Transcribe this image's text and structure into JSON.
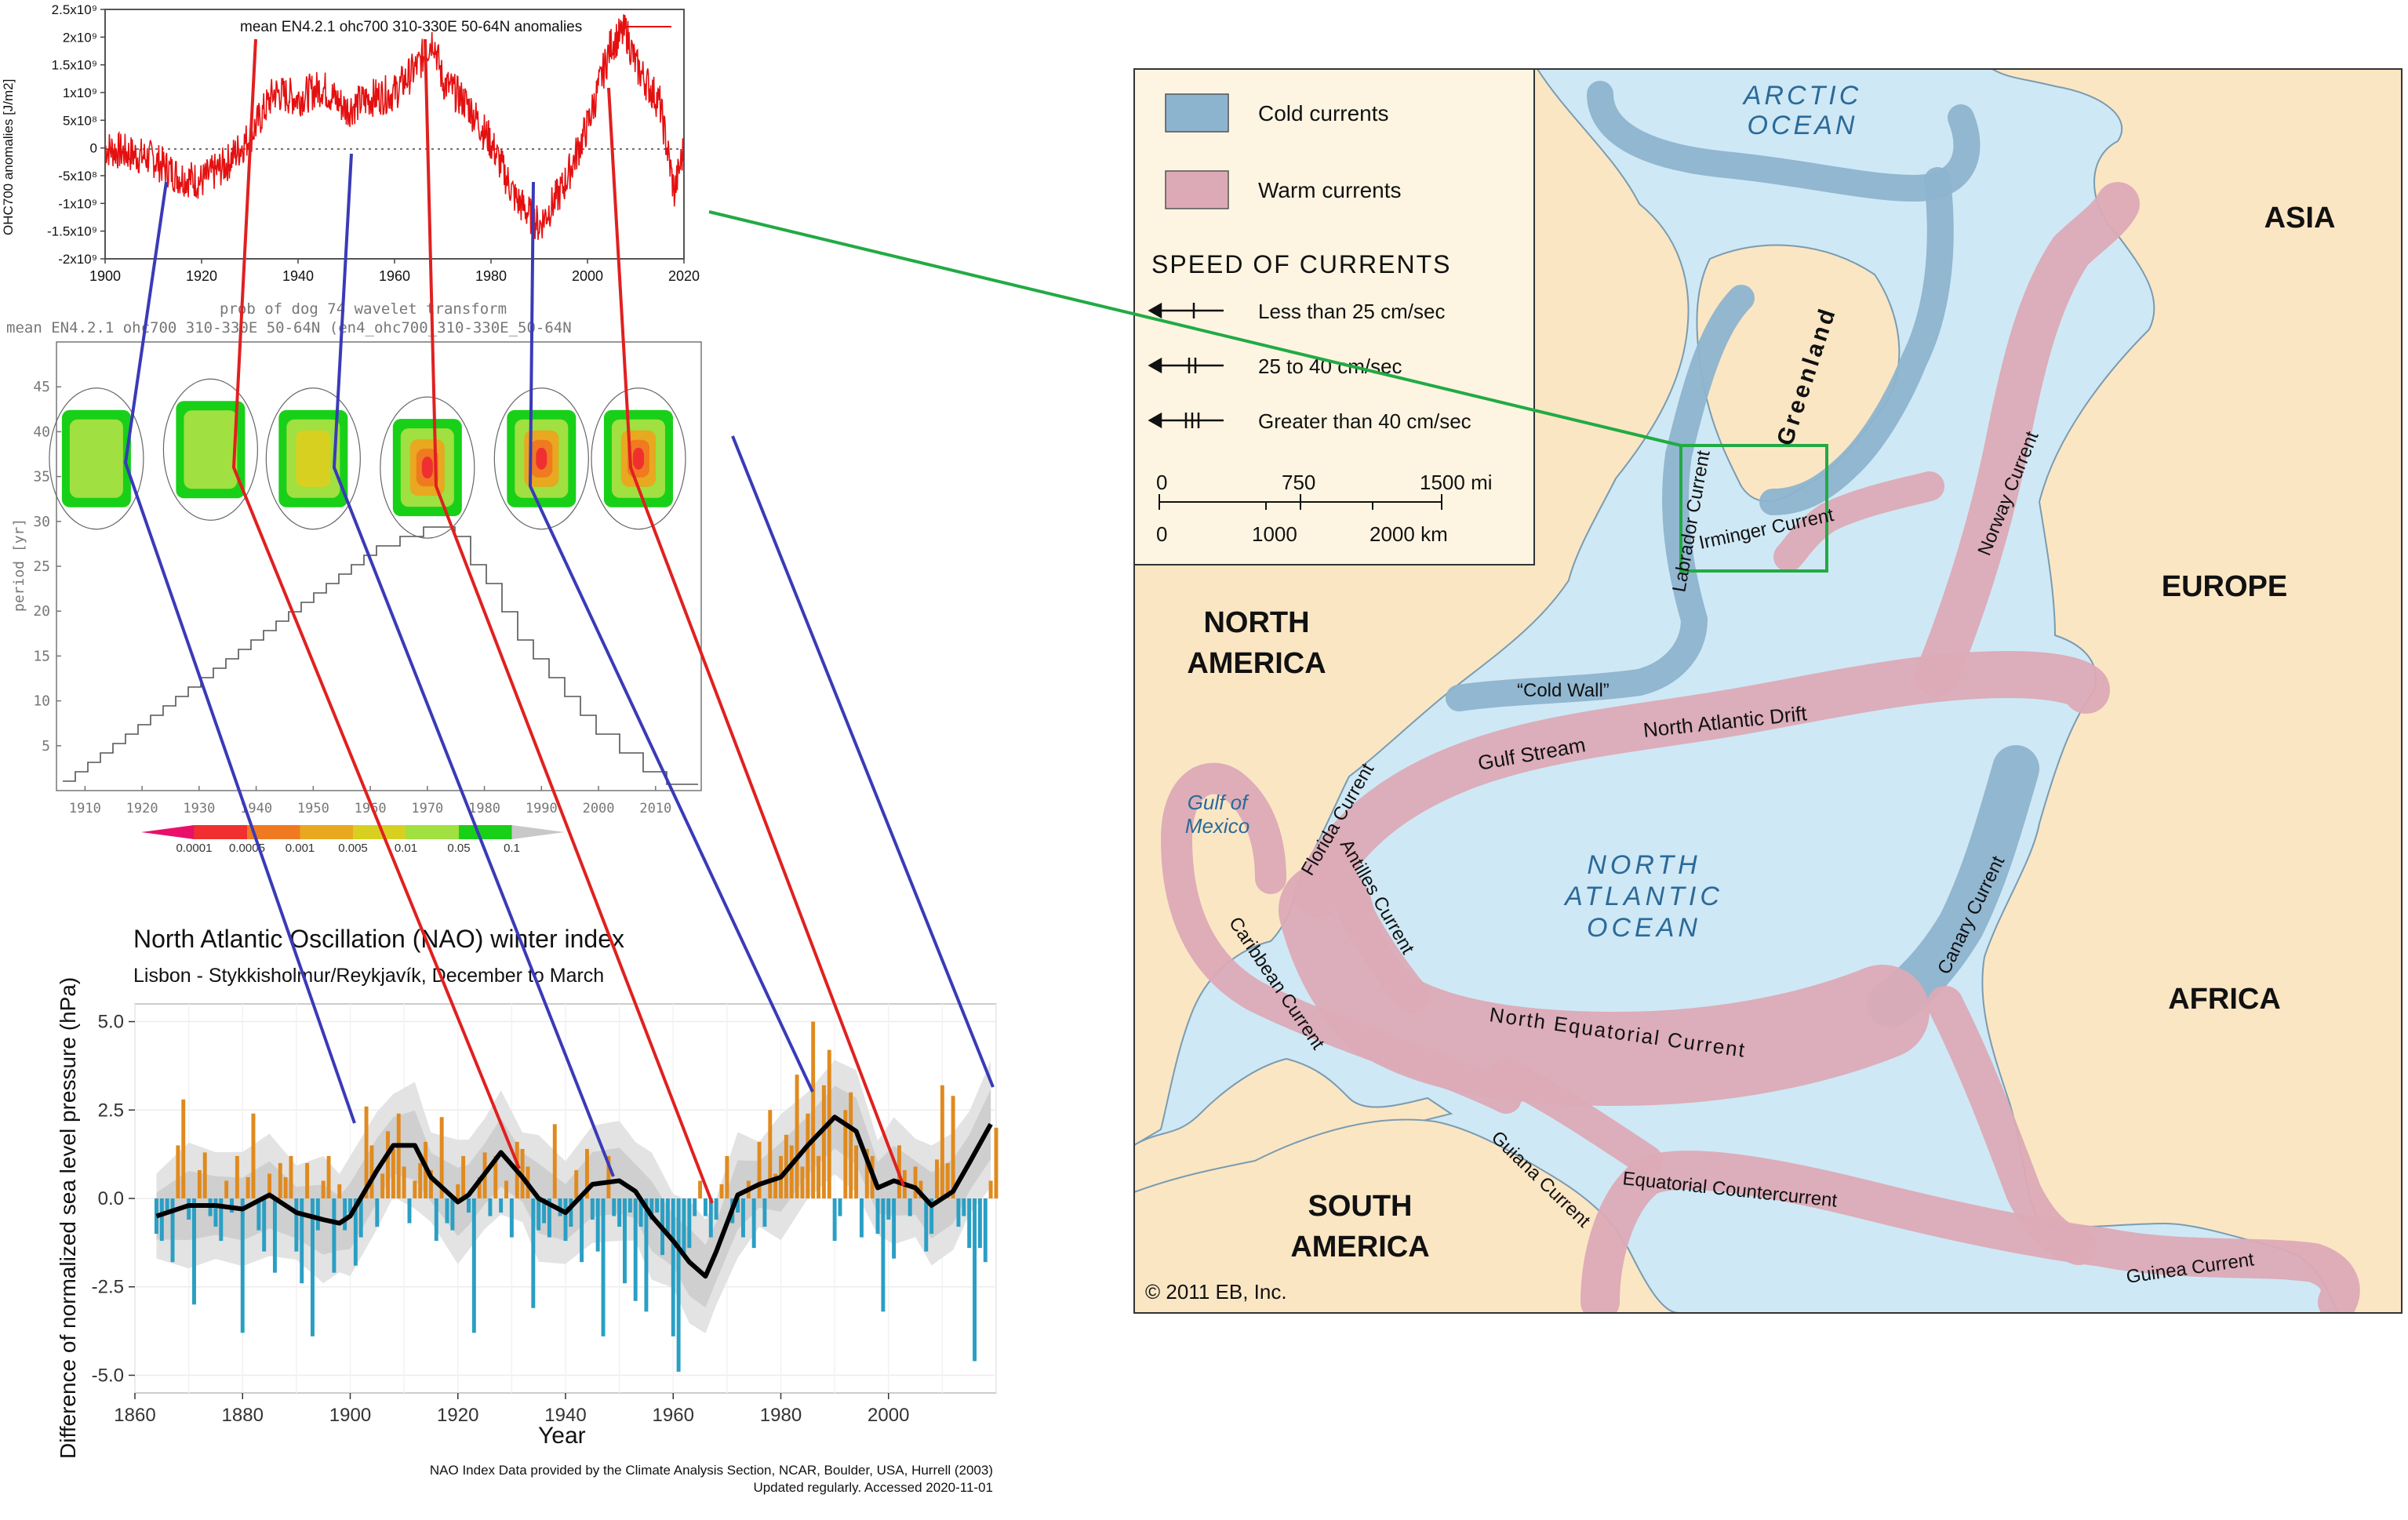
{
  "top_chart": {
    "legend": "mean EN4.2.1 ohc700 310-330E 50-64N anomalies",
    "ylabel": "OHC700 anomalies [J/m2]",
    "yticks": [
      "2.5x10⁹",
      "2x10⁹",
      "1.5x10⁹",
      "1x10⁹",
      "5x10⁸",
      "0",
      "-5x10⁸",
      "-1x10⁹",
      "-1.5x10⁹",
      "-2x10⁹"
    ],
    "xticks": [
      "1900",
      "1920",
      "1940",
      "1960",
      "1980",
      "2000",
      "2020"
    ]
  },
  "wavelet": {
    "title1": "prob of dog 74 wavelet transform",
    "title2": "mean EN4.2.1 ohc700 310-330E 50-64N (en4_ohc700_310-330E_50-64N",
    "ylabel": "period [yr]",
    "yticks": [
      "45",
      "40",
      "35",
      "30",
      "25",
      "20",
      "15",
      "10",
      "5"
    ],
    "xticks": [
      "1910",
      "1920",
      "1930",
      "1940",
      "1950",
      "1960",
      "1970",
      "1980",
      "1990",
      "2000",
      "2010"
    ],
    "colorbar_labels": [
      "0.0001",
      "0.0005",
      "0.001",
      "0.005",
      "0.01",
      "0.05",
      "0.1"
    ],
    "colorbar_colors": [
      "#e8106a",
      "#f03030",
      "#f07a20",
      "#e8a820",
      "#d8d020",
      "#a0e040",
      "#18d018",
      "#c8c8c8"
    ]
  },
  "nao": {
    "title": "North Atlantic Oscillation (NAO) winter index",
    "subtitle": "Lisbon - Stykkisholmur/Reykjavík, December to March",
    "ylabel": "Difference of normalized sea level pressure (hPa)",
    "xlabel": "Year",
    "yticks": [
      "5.0",
      "2.5",
      "0.0",
      "-2.5",
      "-5.0"
    ],
    "xticks": [
      "1860",
      "1880",
      "1900",
      "1920",
      "1940",
      "1960",
      "1980",
      "2000"
    ],
    "footnote1": "NAO Index Data provided by the Climate Analysis Section, NCAR, Boulder, USA, Hurrell (2003)",
    "footnote2": "Updated regularly. Accessed 2020-11-01",
    "pos_color": "#e08a1e",
    "neg_color": "#2a9fc4"
  },
  "chart_data": [
    {
      "type": "line",
      "title": "mean EN4.2.1 ohc700 310-330E 50-64N anomalies",
      "ylabel": "OHC700 anomalies [J/m2]",
      "xlim": [
        1900,
        2020
      ],
      "ylim": [
        -2000000000,
        2500000000
      ],
      "series": [
        {
          "name": "mean EN4.2.1 ohc700 310-330E 50-64N anomalies",
          "x": [
            1900,
            1905,
            1910,
            1915,
            1920,
            1925,
            1930,
            1935,
            1940,
            1945,
            1950,
            1955,
            1960,
            1965,
            1968,
            1970,
            1975,
            1980,
            1985,
            1990,
            1995,
            2000,
            2005,
            2008,
            2010,
            2015,
            2018,
            2020
          ],
          "y": [
            0,
            -100000000,
            -200000000,
            -500000000,
            -600000000,
            -300000000,
            200000000,
            1000000000,
            900000000,
            1100000000,
            700000000,
            900000000,
            1000000000,
            1500000000,
            2000000000,
            1200000000,
            800000000,
            100000000,
            -900000000,
            -1400000000,
            -700000000,
            400000000,
            1900000000,
            2100000000,
            1500000000,
            800000000,
            -800000000,
            0
          ]
        }
      ]
    },
    {
      "type": "heatmap",
      "title": "prob of dog 74 wavelet transform",
      "ylabel": "period [yr]",
      "xlim": [
        1905,
        2018
      ],
      "ylim": [
        0,
        50
      ],
      "blobs": [
        {
          "year": 1912,
          "period": 37,
          "level": "0.05"
        },
        {
          "year": 1932,
          "period": 38,
          "level": "0.05"
        },
        {
          "year": 1950,
          "period": 37,
          "level": "0.01"
        },
        {
          "year": 1970,
          "period": 36,
          "level": "0.0005"
        },
        {
          "year": 1990,
          "period": 37,
          "level": "0.0005"
        },
        {
          "year": 2007,
          "period": 37,
          "level": "0.0005"
        }
      ]
    },
    {
      "type": "bar",
      "title": "North Atlantic Oscillation (NAO) winter index",
      "subtitle": "Lisbon - Stykkisholmur/Reykjavík, December to March",
      "xlabel": "Year",
      "ylabel": "Difference of normalized sea level pressure (hPa)",
      "xlim": [
        1860,
        2020
      ],
      "ylim": [
        -5.5,
        5.5
      ],
      "x_start": 1864,
      "values": [
        -1.0,
        -1.2,
        -0.4,
        -1.8,
        1.5,
        2.8,
        -0.6,
        -3.0,
        0.8,
        1.3,
        -0.5,
        -0.8,
        -1.2,
        0.5,
        -0.4,
        1.2,
        -3.8,
        0.6,
        2.4,
        -0.9,
        -1.5,
        0.7,
        -2.1,
        1.0,
        0.6,
        1.2,
        -1.5,
        -2.4,
        1.0,
        -3.9,
        -0.9,
        0.5,
        1.2,
        -2.1,
        0.4,
        -0.9,
        -0.4,
        -1.9,
        -1.1,
        2.6,
        1.5,
        -0.8,
        0.7,
        1.9,
        1.4,
        2.4,
        0.9,
        -0.7,
        0.5,
        1.0,
        1.6,
        0.8,
        -1.2,
        2.3,
        -0.7,
        -0.9,
        0.4,
        1.2,
        -0.4,
        -3.8,
        0.6,
        1.3,
        -0.5,
        1.2,
        -0.4,
        0.5,
        -1.1,
        1.6,
        1.4,
        0.9,
        -3.1,
        -0.9,
        -0.7,
        -1.1,
        2.1,
        -0.5,
        -1.2,
        -0.8,
        0.8,
        -1.8,
        1.4,
        -0.6,
        -1.5,
        -3.9,
        1.2,
        -0.5,
        -0.8,
        -2.4,
        -0.4,
        -2.9,
        -0.8,
        -3.2,
        -0.6,
        -0.4,
        -1.6,
        -1.0,
        -3.9,
        -4.9,
        -1.6,
        -1.4,
        -0.5,
        0.5,
        -0.5,
        -1.1,
        -0.6,
        0.4,
        1.2,
        -0.7,
        -0.4,
        -1.1,
        0.5,
        -1.4,
        1.6,
        -0.8,
        2.5,
        0.7,
        1.2,
        1.8,
        1.5,
        3.5,
        0.9,
        2.4,
        5.0,
        1.2,
        3.2,
        4.2,
        -1.2,
        -0.5,
        2.5,
        3.0,
        1.5,
        -1.1,
        1.4,
        1.2,
        -1.0,
        -3.2,
        -0.6,
        -1.7,
        1.5,
        0.8,
        -0.5,
        0.9,
        0.5,
        -1.5,
        -1.0,
        1.1,
        3.2,
        1.0,
        2.9,
        -0.8,
        -0.5,
        -1.4,
        -4.6,
        -1.4,
        -1.8,
        0.5,
        2.0,
        3.4,
        -1.2,
        3.6,
        2.4,
        1.6,
        -0.3,
        -1.0
      ],
      "smooth": {
        "x": [
          1864,
          1870,
          1875,
          1880,
          1885,
          1890,
          1895,
          1898,
          1900,
          1905,
          1908,
          1912,
          1915,
          1920,
          1922,
          1925,
          1928,
          1932,
          1935,
          1940,
          1945,
          1950,
          1953,
          1956,
          1960,
          1963,
          1966,
          1968,
          1972,
          1976,
          1980,
          1985,
          1990,
          1994,
          1998,
          2001,
          2005,
          2008,
          2012,
          2015,
          2019
        ],
        "y": [
          -0.5,
          -0.2,
          -0.2,
          -0.3,
          0.1,
          -0.4,
          -0.6,
          -0.7,
          -0.5,
          0.8,
          1.5,
          1.5,
          0.6,
          -0.1,
          0.1,
          0.7,
          1.3,
          0.6,
          0.0,
          -0.4,
          0.4,
          0.5,
          0.2,
          -0.5,
          -1.2,
          -1.8,
          -2.2,
          -1.5,
          0.1,
          0.4,
          0.6,
          1.5,
          2.3,
          1.9,
          0.3,
          0.5,
          0.3,
          -0.2,
          0.2,
          1.0,
          2.1
        ]
      }
    }
  ],
  "map": {
    "legend": {
      "cold": "Cold currents",
      "warm": "Warm currents",
      "speed_title": "SPEED  OF  CURRENTS",
      "speed1": "Less than 25 cm/sec",
      "speed2": "25  to 40 cm/sec",
      "speed3": "Greater than 40 cm/sec",
      "scale_mi": [
        "0",
        "750",
        "1500 mi"
      ],
      "scale_km": [
        "0",
        "1000",
        "2000 km"
      ]
    },
    "colors": {
      "ocean": "#cfe8f5",
      "land": "#fbe6c4",
      "cold": "#8db4cf",
      "warm": "#dcaab6",
      "inset": "#22aa44"
    },
    "labels": {
      "arctic1": "ARCTIC",
      "arctic2": "OCEAN",
      "asia": "ASIA",
      "europe": "EUROPE",
      "africa": "AFRICA",
      "north_america1": "NORTH",
      "north_america2": "AMERICA",
      "south_america1": "SOUTH",
      "south_america2": "AMERICA",
      "gulf1": "Gulf of",
      "gulf2": "Mexico",
      "natlantic1": "NORTH",
      "natlantic2": "ATLANTIC",
      "natlantic3": "OCEAN",
      "greenland": "Greenland",
      "labrador": "Labrador Current",
      "irminger": "Irminger Current",
      "cold_wall": "“Cold Wall”",
      "gulf_stream": "Gulf Stream",
      "nad": "North Atlantic Drift",
      "norway": "Norway Current",
      "canary": "Canary Current",
      "florida": "Florida Current",
      "antilles": "Antilles Current",
      "caribbean": "Caribbean Current",
      "nec": "North Equatorial Current",
      "guiana": "Guiana Current",
      "ecc": "Equatorial Countercurrent",
      "guinea": "Guinea Current",
      "copyright": "© 2011 EB, Inc."
    }
  }
}
